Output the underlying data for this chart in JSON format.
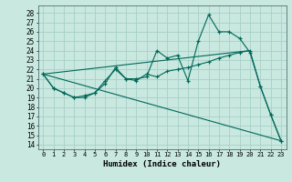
{
  "xlabel": "Humidex (Indice chaleur)",
  "background_color": "#c8e8e0",
  "grid_color": "#a8d0c8",
  "line_color": "#006858",
  "xlim": [
    -0.5,
    23.5
  ],
  "ylim": [
    13.5,
    28.8
  ],
  "xticks": [
    0,
    1,
    2,
    3,
    4,
    5,
    6,
    7,
    8,
    9,
    10,
    11,
    12,
    13,
    14,
    15,
    16,
    17,
    18,
    19,
    20,
    21,
    22,
    23
  ],
  "yticks": [
    14,
    15,
    16,
    17,
    18,
    19,
    20,
    21,
    22,
    23,
    24,
    25,
    26,
    27,
    28
  ],
  "line1_x": [
    0,
    1,
    2,
    3,
    4,
    5,
    6,
    7,
    8,
    9,
    10,
    11,
    12,
    13,
    14,
    15,
    16,
    17,
    18,
    19,
    20,
    21,
    22,
    23
  ],
  "line1_y": [
    21.5,
    20.0,
    19.5,
    19.0,
    19.0,
    19.5,
    20.5,
    22.2,
    21.0,
    21.0,
    21.2,
    24.0,
    23.2,
    23.5,
    20.8,
    25.0,
    27.8,
    26.0,
    26.0,
    25.3,
    23.8,
    20.2,
    17.2,
    14.4
  ],
  "line2_x": [
    0,
    1,
    2,
    3,
    4,
    5,
    6,
    7,
    8,
    9,
    10,
    11,
    12,
    13,
    14,
    15,
    16,
    17,
    18,
    19,
    20,
    21,
    22,
    23
  ],
  "line2_y": [
    21.5,
    20.0,
    19.5,
    19.0,
    19.2,
    19.5,
    20.8,
    22.0,
    21.0,
    20.8,
    21.5,
    21.2,
    21.8,
    22.0,
    22.2,
    22.5,
    22.8,
    23.2,
    23.5,
    23.8,
    24.0,
    20.2,
    17.2,
    14.4
  ],
  "line3_x": [
    0,
    23
  ],
  "line3_y": [
    21.5,
    14.4
  ],
  "line4_x": [
    0,
    20
  ],
  "line4_y": [
    21.5,
    24.0
  ]
}
